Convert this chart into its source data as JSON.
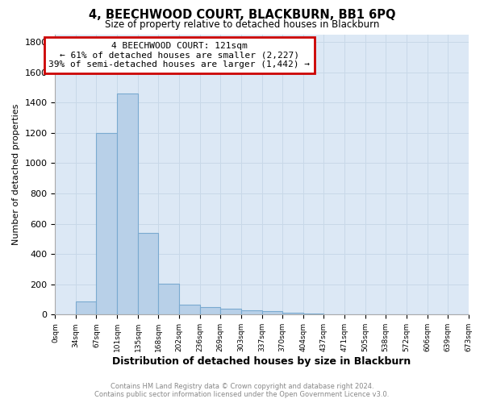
{
  "title": "4, BEECHWOOD COURT, BLACKBURN, BB1 6PQ",
  "subtitle": "Size of property relative to detached houses in Blackburn",
  "xlabel": "Distribution of detached houses by size in Blackburn",
  "ylabel": "Number of detached properties",
  "footer_line1": "Contains HM Land Registry data © Crown copyright and database right 2024.",
  "footer_line2": "Contains public sector information licensed under the Open Government Licence v3.0.",
  "bar_edges": [
    0,
    34,
    67,
    101,
    135,
    168,
    202,
    236,
    269,
    303,
    337,
    370,
    404,
    437,
    471,
    505,
    538,
    572,
    606,
    639,
    673
  ],
  "bar_heights": [
    0,
    85,
    1200,
    1460,
    540,
    205,
    65,
    50,
    40,
    30,
    25,
    10,
    8,
    3,
    1,
    1,
    0,
    0,
    0,
    0
  ],
  "bar_color": "#b8d0e8",
  "bar_edgecolor": "#7aaad0",
  "grid_color": "#c8d8e8",
  "background_color": "#dce8f5",
  "annotation_line1": "4 BEECHWOOD COURT: 121sqm",
  "annotation_line2": "← 61% of detached houses are smaller (2,227)",
  "annotation_line3": "39% of semi-detached houses are larger (1,442) →",
  "annotation_box_color": "#cc0000",
  "ylim": [
    0,
    1850
  ],
  "yticks": [
    0,
    200,
    400,
    600,
    800,
    1000,
    1200,
    1400,
    1600,
    1800
  ],
  "tick_labels": [
    "0sqm",
    "34sqm",
    "67sqm",
    "101sqm",
    "135sqm",
    "168sqm",
    "202sqm",
    "236sqm",
    "269sqm",
    "303sqm",
    "337sqm",
    "370sqm",
    "404sqm",
    "437sqm",
    "471sqm",
    "505sqm",
    "538sqm",
    "572sqm",
    "606sqm",
    "639sqm",
    "673sqm"
  ]
}
